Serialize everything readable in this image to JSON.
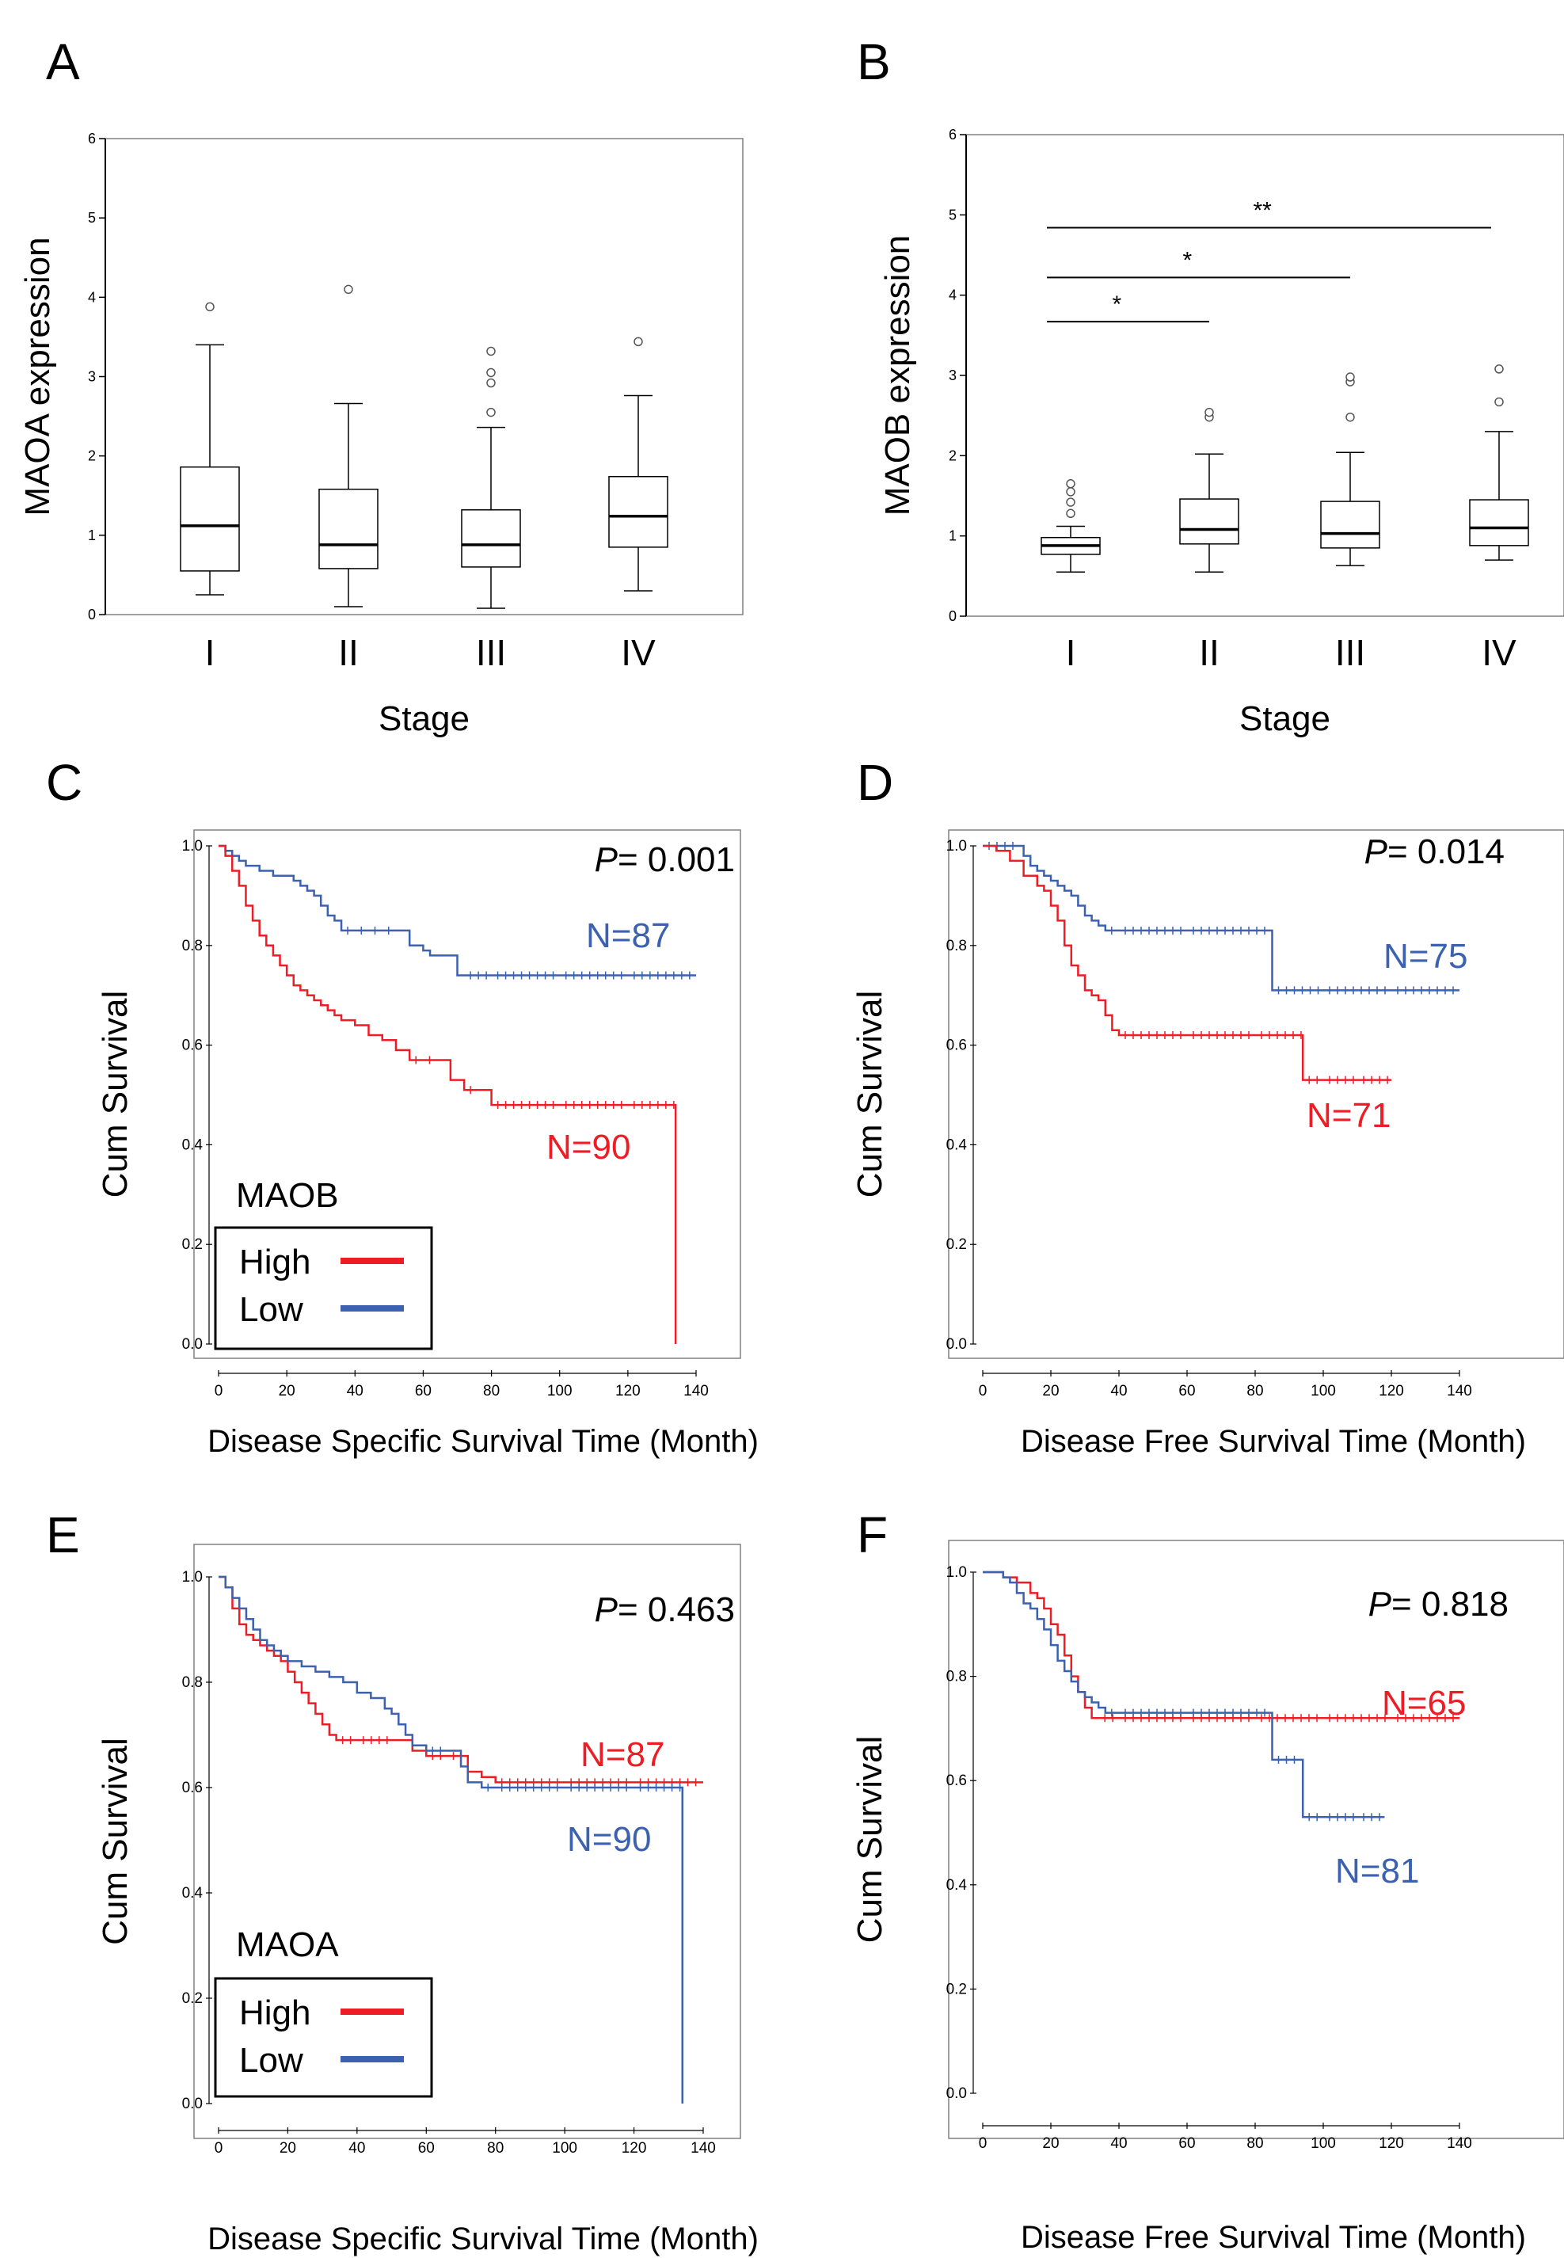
{
  "colors": {
    "high": "#ee1c25",
    "low": "#3b61b0",
    "axis": "#000000",
    "frame": "#808080"
  },
  "chart_data": [
    {
      "panel": "A",
      "type": "box",
      "ylabel": "MAOA expression",
      "xlabel": "Stage",
      "ylim": [
        0,
        6
      ],
      "yticks": [
        "0",
        "1",
        "2",
        "3",
        "4",
        "5",
        "6"
      ],
      "categories": [
        "I",
        "II",
        "III",
        "IV"
      ],
      "boxes": [
        {
          "whisker_low": 0.25,
          "q1": 0.55,
          "median": 1.12,
          "q3": 1.86,
          "whisker_high": 3.4,
          "outliers": [
            3.88
          ]
        },
        {
          "whisker_low": 0.1,
          "q1": 0.58,
          "median": 0.88,
          "q3": 1.58,
          "whisker_high": 2.66,
          "outliers": [
            4.1
          ]
        },
        {
          "whisker_low": 0.08,
          "q1": 0.6,
          "median": 0.88,
          "q3": 1.32,
          "whisker_high": 2.36,
          "outliers": [
            2.55,
            2.92,
            3.05,
            3.32
          ]
        },
        {
          "whisker_low": 0.3,
          "q1": 0.85,
          "median": 1.24,
          "q3": 1.74,
          "whisker_high": 2.76,
          "outliers": [
            3.44
          ]
        }
      ]
    },
    {
      "panel": "B",
      "type": "box",
      "ylabel": "MAOB expression",
      "xlabel": "Stage",
      "ylim": [
        0,
        6
      ],
      "yticks": [
        "0",
        "1",
        "2",
        "3",
        "4",
        "5",
        "6"
      ],
      "categories": [
        "I",
        "II",
        "III",
        "IV"
      ],
      "boxes": [
        {
          "whisker_low": 0.55,
          "q1": 0.77,
          "median": 0.88,
          "q3": 0.98,
          "whisker_high": 1.12,
          "outliers": [
            1.28,
            1.42,
            1.55,
            1.65
          ]
        },
        {
          "whisker_low": 0.55,
          "q1": 0.9,
          "median": 1.08,
          "q3": 1.46,
          "whisker_high": 2.02,
          "outliers": [
            2.48,
            2.54
          ]
        },
        {
          "whisker_low": 0.63,
          "q1": 0.85,
          "median": 1.03,
          "q3": 1.43,
          "whisker_high": 2.04,
          "outliers": [
            2.48,
            2.92,
            2.98
          ]
        },
        {
          "whisker_low": 0.7,
          "q1": 0.88,
          "median": 1.1,
          "q3": 1.45,
          "whisker_high": 2.3,
          "outliers": [
            2.67,
            3.08
          ]
        }
      ],
      "significance": [
        {
          "from": "I",
          "to": "II",
          "label": "*",
          "y": 3.67
        },
        {
          "from": "I",
          "to": "III",
          "label": "*",
          "y": 4.22
        },
        {
          "from": "I",
          "to": "IV",
          "label": "**",
          "y": 4.84
        }
      ]
    },
    {
      "panel": "C",
      "type": "line",
      "ylabel": "Cum Survival",
      "xlabel": "Disease Specific Survival Time  (Month)",
      "xlim": [
        0,
        140
      ],
      "ylim": [
        0,
        1
      ],
      "xticks": [
        "0",
        "20",
        "40",
        "60",
        "80",
        "100",
        "120",
        "140"
      ],
      "yticks": [
        "0.0",
        "0.2",
        "0.4",
        "0.6",
        "0.8",
        "1.0"
      ],
      "p_prefix": "P",
      "p_value": "= 0.001",
      "legend": {
        "title": "MAOB",
        "high": "High",
        "low": "Low"
      },
      "series": [
        {
          "name": "Low",
          "color": "low",
          "label": "N=87",
          "x": [
            0,
            2,
            4,
            6,
            8,
            10,
            12,
            14,
            16,
            18,
            20,
            22,
            24,
            26,
            28,
            30,
            32,
            34,
            36,
            40,
            44,
            48,
            52,
            56,
            60,
            62,
            64,
            66,
            68,
            70,
            72,
            80,
            100,
            120,
            140
          ],
          "y": [
            1.0,
            0.99,
            0.98,
            0.97,
            0.96,
            0.96,
            0.95,
            0.95,
            0.94,
            0.94,
            0.94,
            0.93,
            0.92,
            0.91,
            0.9,
            0.88,
            0.86,
            0.85,
            0.83,
            0.83,
            0.83,
            0.83,
            0.83,
            0.8,
            0.79,
            0.78,
            0.78,
            0.78,
            0.78,
            0.74,
            0.74,
            0.74,
            0.74,
            0.74,
            0.74
          ]
        },
        {
          "name": "High",
          "color": "high",
          "label": "N=90",
          "x": [
            0,
            2,
            4,
            6,
            8,
            10,
            12,
            14,
            16,
            18,
            20,
            22,
            24,
            26,
            28,
            30,
            32,
            34,
            36,
            40,
            44,
            48,
            52,
            56,
            60,
            64,
            68,
            70,
            72,
            76,
            80,
            100,
            120,
            134,
            134
          ],
          "y": [
            1.0,
            0.98,
            0.95,
            0.92,
            0.88,
            0.85,
            0.82,
            0.8,
            0.78,
            0.76,
            0.74,
            0.72,
            0.71,
            0.7,
            0.69,
            0.68,
            0.67,
            0.66,
            0.65,
            0.64,
            0.62,
            0.61,
            0.59,
            0.57,
            0.57,
            0.57,
            0.53,
            0.53,
            0.51,
            0.51,
            0.48,
            0.48,
            0.48,
            0.48,
            0.0
          ]
        }
      ]
    },
    {
      "panel": "D",
      "type": "line",
      "ylabel": "Cum Survival",
      "xlabel": "Disease Free Survival Time  (Month)",
      "xlim": [
        0,
        140
      ],
      "ylim": [
        0,
        1
      ],
      "xticks": [
        "0",
        "20",
        "40",
        "60",
        "80",
        "100",
        "120",
        "140"
      ],
      "yticks": [
        "0.0",
        "0.2",
        "0.4",
        "0.6",
        "0.8",
        "1.0"
      ],
      "p_prefix": "P",
      "p_value": "= 0.014",
      "series": [
        {
          "name": "Low",
          "color": "low",
          "label": "N=75",
          "x": [
            0,
            10,
            12,
            14,
            16,
            18,
            20,
            22,
            24,
            26,
            28,
            30,
            32,
            34,
            36,
            40,
            60,
            85,
            85,
            100,
            120,
            140
          ],
          "y": [
            1.0,
            1.0,
            0.98,
            0.96,
            0.95,
            0.94,
            0.93,
            0.92,
            0.91,
            0.9,
            0.88,
            0.86,
            0.85,
            0.84,
            0.83,
            0.83,
            0.83,
            0.83,
            0.71,
            0.71,
            0.71,
            0.71
          ]
        },
        {
          "name": "High",
          "color": "high",
          "label": "N=71",
          "x": [
            0,
            4,
            8,
            12,
            16,
            18,
            20,
            22,
            24,
            26,
            28,
            30,
            32,
            34,
            36,
            38,
            40,
            60,
            80,
            94,
            94,
            100,
            110,
            120
          ],
          "y": [
            1.0,
            0.99,
            0.97,
            0.94,
            0.92,
            0.91,
            0.88,
            0.85,
            0.8,
            0.76,
            0.74,
            0.71,
            0.7,
            0.69,
            0.66,
            0.63,
            0.62,
            0.62,
            0.62,
            0.62,
            0.53,
            0.53,
            0.53,
            0.53
          ]
        }
      ]
    },
    {
      "panel": "E",
      "type": "line",
      "ylabel": "Cum Survival",
      "xlabel": "Disease Specific Survival Time  (Month)",
      "xlim": [
        0,
        140
      ],
      "ylim": [
        0,
        1
      ],
      "xticks": [
        "0",
        "20",
        "40",
        "60",
        "80",
        "100",
        "120",
        "140"
      ],
      "yticks": [
        "0.0",
        "0.2",
        "0.4",
        "0.6",
        "0.8",
        "1.0"
      ],
      "p_prefix": "P",
      "p_value": "= 0.463",
      "legend": {
        "title": "MAOA",
        "high": "High",
        "low": "Low"
      },
      "series": [
        {
          "name": "High",
          "color": "high",
          "label": "N=87",
          "x": [
            0,
            2,
            4,
            6,
            8,
            10,
            12,
            14,
            16,
            18,
            20,
            22,
            24,
            26,
            28,
            30,
            32,
            34,
            40,
            50,
            56,
            60,
            66,
            70,
            72,
            76,
            80,
            100,
            120,
            140
          ],
          "y": [
            1.0,
            0.98,
            0.94,
            0.91,
            0.89,
            0.88,
            0.87,
            0.86,
            0.85,
            0.84,
            0.82,
            0.8,
            0.78,
            0.76,
            0.74,
            0.72,
            0.7,
            0.69,
            0.69,
            0.69,
            0.67,
            0.66,
            0.66,
            0.66,
            0.63,
            0.62,
            0.61,
            0.61,
            0.61,
            0.61
          ]
        },
        {
          "name": "Low",
          "color": "low",
          "label": "N=90",
          "x": [
            0,
            2,
            4,
            6,
            8,
            10,
            12,
            14,
            16,
            18,
            20,
            22,
            24,
            26,
            28,
            30,
            32,
            34,
            36,
            40,
            44,
            48,
            50,
            52,
            54,
            56,
            60,
            66,
            70,
            72,
            76,
            80,
            100,
            120,
            134,
            134
          ],
          "y": [
            1.0,
            0.98,
            0.96,
            0.94,
            0.92,
            0.9,
            0.88,
            0.87,
            0.86,
            0.85,
            0.84,
            0.84,
            0.83,
            0.83,
            0.82,
            0.82,
            0.81,
            0.81,
            0.8,
            0.78,
            0.77,
            0.75,
            0.74,
            0.72,
            0.7,
            0.68,
            0.67,
            0.67,
            0.64,
            0.61,
            0.6,
            0.6,
            0.6,
            0.6,
            0.6,
            0.0
          ]
        }
      ]
    },
    {
      "panel": "F",
      "type": "line",
      "ylabel": "Cum Survival",
      "xlabel": "Disease Free Survival Time  (Month)",
      "xlim": [
        0,
        140
      ],
      "ylim": [
        0,
        1
      ],
      "xticks": [
        "0",
        "20",
        "40",
        "60",
        "80",
        "100",
        "120",
        "140"
      ],
      "yticks": [
        "0.0",
        "0.2",
        "0.4",
        "0.6",
        "0.8",
        "1.0"
      ],
      "p_prefix": "P",
      "p_value": "= 0.818",
      "series": [
        {
          "name": "High",
          "color": "high",
          "label": "N=65",
          "x": [
            0,
            6,
            10,
            14,
            16,
            18,
            20,
            22,
            24,
            26,
            28,
            30,
            32,
            34,
            40,
            60,
            80,
            100,
            120,
            140
          ],
          "y": [
            1.0,
            0.99,
            0.98,
            0.96,
            0.95,
            0.93,
            0.9,
            0.88,
            0.84,
            0.8,
            0.77,
            0.74,
            0.72,
            0.72,
            0.72,
            0.72,
            0.72,
            0.72,
            0.72,
            0.72
          ]
        },
        {
          "name": "Low",
          "color": "low",
          "label": "N=81",
          "x": [
            0,
            6,
            8,
            10,
            12,
            14,
            16,
            18,
            20,
            22,
            24,
            26,
            28,
            30,
            32,
            34,
            36,
            40,
            60,
            85,
            85,
            94,
            94,
            100,
            110,
            118
          ],
          "y": [
            1.0,
            0.99,
            0.98,
            0.96,
            0.94,
            0.93,
            0.91,
            0.89,
            0.86,
            0.83,
            0.81,
            0.79,
            0.77,
            0.76,
            0.75,
            0.74,
            0.73,
            0.73,
            0.73,
            0.73,
            0.64,
            0.64,
            0.53,
            0.53,
            0.53,
            0.53
          ]
        }
      ]
    }
  ]
}
